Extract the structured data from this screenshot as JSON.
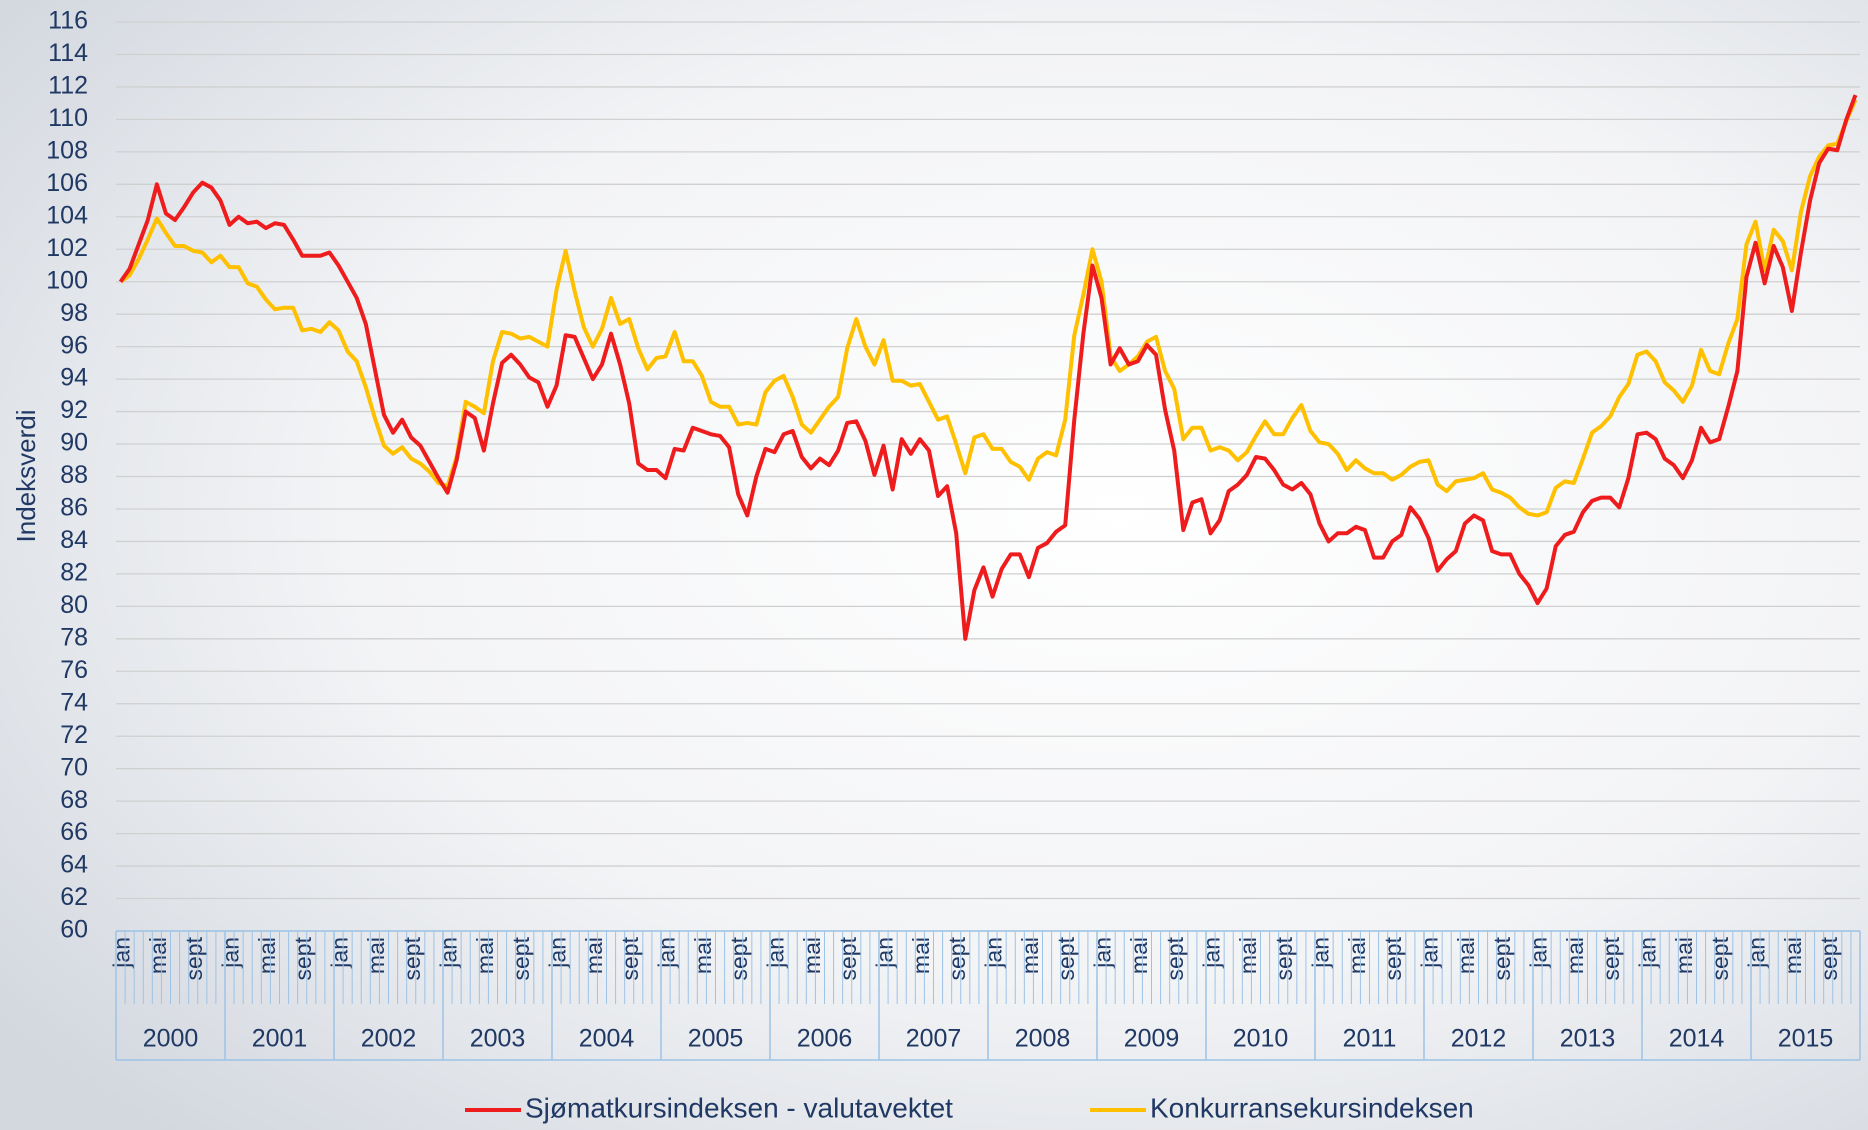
{
  "chart_data": {
    "type": "line",
    "y_label": "Indeksverdi",
    "categories": [
      "jan",
      null,
      null,
      null,
      "mai",
      null,
      null,
      null,
      "sept",
      null,
      null,
      null,
      "jan",
      null,
      null,
      null,
      "mai",
      null,
      null,
      null,
      "sept",
      null,
      null,
      null,
      "jan",
      null,
      null,
      null,
      "mai",
      null,
      null,
      null,
      "sept",
      null,
      null,
      null,
      "jan",
      null,
      null,
      null,
      "mai",
      null,
      null,
      null,
      "sept",
      null,
      null,
      null,
      "jan",
      null,
      null,
      null,
      "mai",
      null,
      null,
      null,
      "sept",
      null,
      null,
      null,
      "jan",
      null,
      null,
      null,
      "mai",
      null,
      null,
      null,
      "sept",
      null,
      null,
      null,
      "jan",
      null,
      null,
      null,
      "mai",
      null,
      null,
      null,
      "sept",
      null,
      null,
      null,
      "jan",
      null,
      null,
      null,
      "mai",
      null,
      null,
      null,
      "sept",
      null,
      null,
      null,
      "jan",
      null,
      null,
      null,
      "mai",
      null,
      null,
      null,
      "sept",
      null,
      null,
      null,
      "jan",
      null,
      null,
      null,
      "mai",
      null,
      null,
      null,
      "sept",
      null,
      null,
      null,
      "jan",
      null,
      null,
      null,
      "mai",
      null,
      null,
      null,
      "sept",
      null,
      null,
      null,
      "jan",
      null,
      null,
      null,
      "mai",
      null,
      null,
      null,
      "sept",
      null,
      null,
      null,
      "jan",
      null,
      null,
      null,
      "mai",
      null,
      null,
      null,
      "sept",
      null,
      null,
      null,
      "jan",
      null,
      null,
      null,
      "mai",
      null,
      null,
      null,
      "sept",
      null,
      null,
      null,
      "jan",
      null,
      null,
      null,
      "mai",
      null,
      null,
      null,
      "sept",
      null,
      null,
      null,
      "jan",
      null,
      null,
      null,
      "mai",
      null,
      null,
      null,
      "sept",
      null,
      null,
      null
    ],
    "years": [
      "2000",
      "2001",
      "2002",
      "2003",
      "2004",
      "2005",
      "2006",
      "2007",
      "2008",
      "2009",
      "2010",
      "2011",
      "2012",
      "2013",
      "2014",
      "2015"
    ],
    "series": [
      {
        "name": "Sjømatkursindeksen - valutavektet",
        "color": "#ee1c1c",
        "values": [
          100,
          100.8,
          102.3,
          103.8,
          106,
          104.2,
          103.8,
          104.6,
          105.5,
          106.1,
          105.8,
          105,
          103.5,
          104,
          103.6,
          103.7,
          103.3,
          103.6,
          103.5,
          102.6,
          101.6,
          101.6,
          101.6,
          101.8,
          101,
          100,
          99,
          97.4,
          94.6,
          91.8,
          90.7,
          91.5,
          90.4,
          89.9,
          88.9,
          87.9,
          87,
          89,
          92,
          91.6,
          89.6,
          92.5,
          95,
          95.5,
          94.9,
          94.1,
          93.8,
          92.3,
          93.6,
          96.7,
          96.6,
          95.3,
          94,
          94.9,
          96.8,
          94.9,
          92.5,
          88.8,
          88.4,
          88.4,
          87.9,
          89.7,
          89.6,
          91,
          90.8,
          90.6,
          90.5,
          89.8,
          86.9,
          85.6,
          88,
          89.7,
          89.5,
          90.6,
          90.8,
          89.2,
          88.5,
          89.1,
          88.7,
          89.6,
          91.3,
          91.4,
          90.2,
          88.1,
          89.9,
          87.2,
          90.3,
          89.4,
          90.3,
          89.6,
          86.8,
          87.4,
          84.5,
          78,
          81,
          82.4,
          80.6,
          82.3,
          83.2,
          83.2,
          81.8,
          83.6,
          83.9,
          84.6,
          85,
          91.5,
          96.8,
          101,
          99,
          94.9,
          95.9,
          94.9,
          95.1,
          96.1,
          95.5,
          92.1,
          89.6,
          84.7,
          86.4,
          86.6,
          84.5,
          85.3,
          87.1,
          87.5,
          88.1,
          89.2,
          89.1,
          88.4,
          87.5,
          87.2,
          87.6,
          86.9,
          85.1,
          84,
          84.5,
          84.5,
          84.9,
          84.7,
          83,
          83,
          84,
          84.4,
          86.1,
          85.4,
          84.2,
          82.2,
          82.9,
          83.4,
          85.1,
          85.6,
          85.3,
          83.4,
          83.2,
          83.2,
          82,
          81.3,
          80.2,
          81.1,
          83.7,
          84.4,
          84.6,
          85.8,
          86.5,
          86.7,
          86.7,
          86.1,
          87.9,
          90.6,
          90.7,
          90.3,
          89.1,
          88.7,
          87.9,
          89,
          91,
          90.1,
          90.3,
          92.3,
          94.5,
          100.3,
          102.4,
          99.9,
          102.2,
          100.9,
          98.2,
          101.8,
          105,
          107.3,
          108.2,
          108.1,
          110,
          111.5
        ]
      },
      {
        "name": "Konkurransekursindeksen",
        "color": "#ffc000",
        "values": [
          100,
          100.4,
          101.4,
          102.6,
          103.9,
          103,
          102.2,
          102.2,
          101.9,
          101.8,
          101.2,
          101.6,
          100.9,
          100.9,
          99.9,
          99.7,
          98.9,
          98.3,
          98.4,
          98.4,
          97,
          97.1,
          96.9,
          97.5,
          97,
          95.7,
          95.1,
          93.5,
          91.6,
          89.9,
          89.4,
          89.8,
          89.1,
          88.8,
          88.3,
          87.6,
          87.4,
          89.2,
          92.6,
          92.3,
          91.9,
          95.1,
          96.9,
          96.8,
          96.5,
          96.6,
          96.3,
          96,
          99.5,
          101.9,
          99.4,
          97.2,
          96,
          97.1,
          99,
          97.4,
          97.7,
          95.9,
          94.6,
          95.3,
          95.4,
          96.9,
          95.1,
          95.1,
          94.2,
          92.6,
          92.3,
          92.3,
          91.2,
          91.3,
          91.2,
          93.2,
          93.9,
          94.2,
          92.9,
          91.2,
          90.7,
          91.5,
          92.3,
          92.9,
          95.9,
          97.7,
          96,
          94.9,
          96.4,
          93.9,
          93.9,
          93.6,
          93.7,
          92.6,
          91.5,
          91.7,
          90,
          88.2,
          90.4,
          90.6,
          89.7,
          89.7,
          88.9,
          88.6,
          87.8,
          89.1,
          89.5,
          89.3,
          91.5,
          96.7,
          99.2,
          102,
          100,
          95.4,
          94.5,
          94.9,
          95.4,
          96.3,
          96.6,
          94.5,
          93.4,
          90.3,
          91,
          91,
          89.6,
          89.8,
          89.6,
          89,
          89.5,
          90.5,
          91.4,
          90.6,
          90.6,
          91.6,
          92.4,
          90.8,
          90.1,
          90,
          89.4,
          88.4,
          89,
          88.5,
          88.2,
          88.2,
          87.8,
          88.1,
          88.6,
          88.9,
          89,
          87.5,
          87.1,
          87.7,
          87.8,
          87.9,
          88.2,
          87.2,
          87,
          86.7,
          86.1,
          85.7,
          85.6,
          85.8,
          87.3,
          87.7,
          87.6,
          89.1,
          90.7,
          91.1,
          91.7,
          92.9,
          93.7,
          95.5,
          95.7,
          95.1,
          93.8,
          93.3,
          92.6,
          93.6,
          95.8,
          94.5,
          94.3,
          96.2,
          97.7,
          102.3,
          103.7,
          100.7,
          103.2,
          102.5,
          100.7,
          104.3,
          106.5,
          107.7,
          108.4,
          108.5,
          109.9,
          111.2
        ]
      }
    ],
    "ylim": [
      60,
      116
    ],
    "yticks": [
      60,
      62,
      64,
      66,
      68,
      70,
      72,
      74,
      76,
      78,
      80,
      82,
      84,
      86,
      88,
      90,
      92,
      94,
      96,
      98,
      100,
      102,
      104,
      106,
      108,
      110,
      112,
      114,
      116
    ],
    "grid": true
  }
}
